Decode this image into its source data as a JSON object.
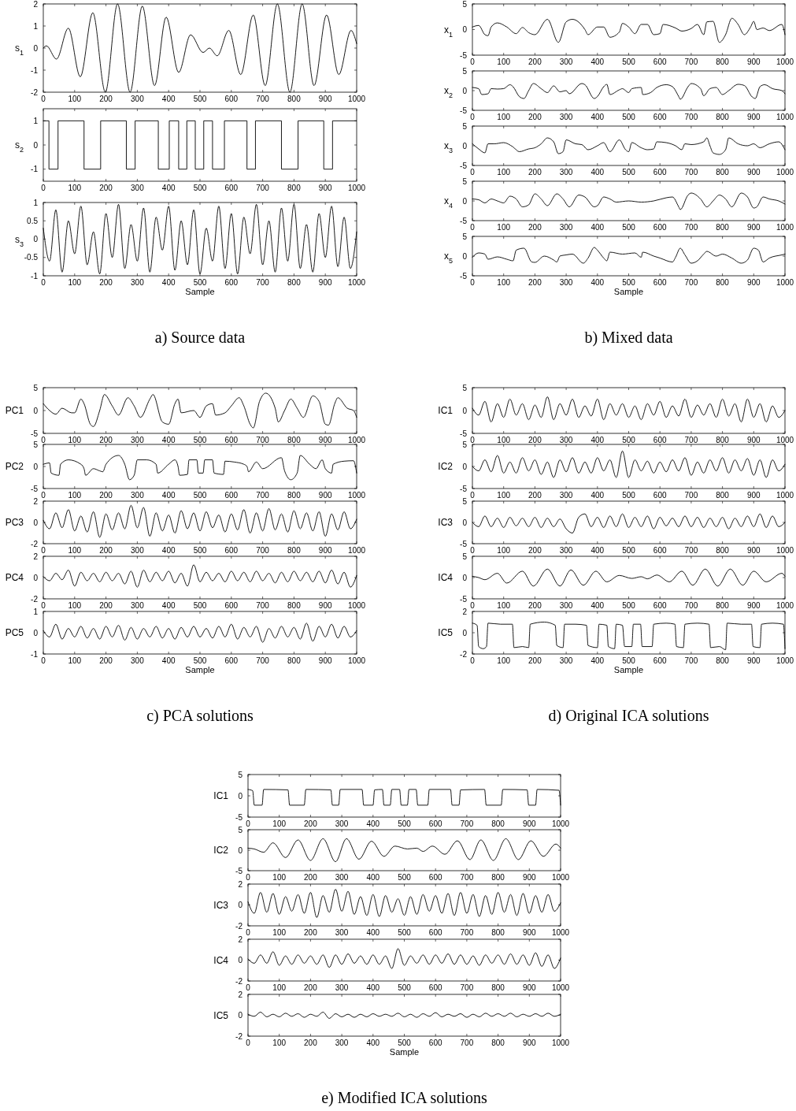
{
  "chart_data": [
    {
      "type": "line",
      "ylabel": "s$_{1}$",
      "color": "#000000",
      "xlim": [
        0,
        1000
      ],
      "xticks": [
        0,
        100,
        200,
        300,
        400,
        500,
        600,
        700,
        800,
        900,
        1000
      ],
      "ylim": [
        -2,
        2
      ],
      "yticks": [
        -2,
        -1,
        0,
        1,
        2
      ],
      "x": [
        0,
        10,
        42,
        80,
        118,
        158,
        198,
        237,
        277,
        316,
        355,
        392,
        432,
        470,
        510,
        530,
        555,
        592,
        630,
        670,
        708,
        747,
        787,
        826,
        864,
        904,
        943,
        982,
        1000
      ],
      "values": [
        0,
        0.1,
        -0.5,
        0.9,
        -1.3,
        1.6,
        -2,
        2,
        -2,
        1.9,
        -1.7,
        1.4,
        -1.1,
        0.6,
        -0.2,
        0,
        -0.35,
        0.8,
        -1.2,
        1.5,
        -1.7,
        2,
        -2,
        2,
        -1.7,
        1.5,
        -1.2,
        0.8,
        0.2
      ]
    },
    {
      "type": "step",
      "ylabel": "s$_{2}$",
      "color": "#000000",
      "xlim": [
        0,
        1000
      ],
      "xticks": [
        0,
        100,
        200,
        300,
        400,
        500,
        600,
        700,
        800,
        900,
        1000
      ],
      "ylim": [
        -1.5,
        1.5
      ],
      "yticks": [
        -1,
        0,
        1
      ],
      "x": [
        0,
        18,
        47,
        130,
        183,
        265,
        293,
        367,
        402,
        432,
        458,
        485,
        512,
        540,
        578,
        650,
        677,
        760,
        813,
        895,
        923,
        1000
      ],
      "values": [
        1,
        -1,
        1,
        -1,
        1,
        -1,
        1,
        -1,
        1,
        -1,
        1,
        -1,
        1,
        -1,
        1,
        -1,
        1,
        -1,
        1,
        -1,
        1,
        1
      ]
    },
    {
      "type": "line",
      "ylabel": "s$_{3}$",
      "xlabel": "Sample",
      "annotations": [
        "a) Source data"
      ],
      "color": "#000000",
      "xlim": [
        0,
        1000
      ],
      "xticks": [
        0,
        100,
        200,
        300,
        400,
        500,
        600,
        700,
        800,
        900,
        1000
      ],
      "ylim": [
        -1,
        1
      ],
      "yticks": [
        -1,
        -0.5,
        0,
        0.5,
        1
      ],
      "x": [
        0,
        20,
        40,
        60,
        80,
        100,
        120,
        140,
        160,
        180,
        200,
        220,
        240,
        260,
        280,
        300,
        320,
        340,
        360,
        380,
        400,
        420,
        440,
        460,
        480,
        500,
        520,
        540,
        560,
        580,
        600,
        620,
        640,
        660,
        680,
        700,
        720,
        740,
        760,
        780,
        800,
        820,
        840,
        860,
        880,
        900,
        920,
        940,
        960,
        980,
        1000
      ],
      "values": [
        0.3,
        -0.6,
        0.8,
        -0.9,
        0.5,
        -0.4,
        0.9,
        -0.7,
        0.2,
        -0.95,
        0.7,
        -0.5,
        0.95,
        -0.8,
        0.4,
        -0.6,
        0.85,
        -0.9,
        0.6,
        -0.3,
        0.9,
        -0.85,
        0.5,
        -0.7,
        0.8,
        -0.95,
        0.3,
        -0.6,
        0.9,
        -0.8,
        0.7,
        -0.95,
        0.6,
        -0.4,
        0.95,
        -0.7,
        0.5,
        -0.9,
        0.85,
        -0.6,
        0.95,
        -0.8,
        0.4,
        -0.9,
        0.7,
        -0.5,
        0.9,
        -0.75,
        0.6,
        -0.8,
        0.2
      ]
    },
    {
      "type": "line",
      "ylabel": "x$_{1}$",
      "color": "#000000",
      "xlim": [
        0,
        1000
      ],
      "xticks": [
        0,
        100,
        200,
        300,
        400,
        500,
        600,
        700,
        800,
        900,
        1000
      ],
      "ylim": [
        -5,
        5
      ],
      "yticks": [
        -5,
        0,
        5
      ],
      "x": [
        0,
        20,
        40,
        50,
        60,
        80,
        110,
        140,
        160,
        180,
        200,
        240,
        275,
        300,
        320,
        360,
        370,
        400,
        420,
        440,
        470,
        480,
        500,
        520,
        540,
        560,
        580,
        600,
        610,
        650,
        670,
        700,
        720,
        740,
        750,
        770,
        790,
        810,
        830,
        850,
        870,
        890,
        900,
        910,
        930,
        950,
        990,
        1000
      ],
      "values": [
        0.5,
        0.8,
        -1,
        -1.2,
        0.5,
        1.3,
        0.5,
        -0.8,
        0.4,
        -0.6,
        -1,
        2,
        -2.5,
        1.5,
        2,
        0,
        -1,
        0.5,
        0.5,
        -1.5,
        -0.5,
        1.2,
        0.5,
        -0.8,
        1,
        1,
        -1,
        -0.8,
        1,
        0.3,
        -0.3,
        0.2,
        1,
        -1,
        1.5,
        1.6,
        -2.5,
        -1,
        2.2,
        1,
        -1,
        0.5,
        1.6,
        0,
        0.3,
        -0.2,
        1,
        -1
      ]
    },
    {
      "type": "line",
      "ylabel": "x$_{2}$",
      "color": "#000000",
      "xlim": [
        0,
        1000
      ],
      "xticks": [
        0,
        100,
        200,
        300,
        400,
        500,
        600,
        700,
        800,
        900,
        1000
      ],
      "ylim": [
        -5,
        5
      ],
      "yticks": [
        -5,
        0,
        5
      ],
      "x": [
        0,
        20,
        30,
        50,
        60,
        80,
        100,
        120,
        130,
        150,
        165,
        180,
        195,
        220,
        240,
        260,
        280,
        300,
        310,
        350,
        360,
        390,
        400,
        420,
        430,
        440,
        470,
        480,
        500,
        510,
        540,
        545,
        570,
        590,
        620,
        640,
        660,
        665,
        690,
        700,
        730,
        740,
        760,
        780,
        800,
        820,
        850,
        870,
        895,
        905,
        920,
        935,
        960,
        990,
        1000
      ],
      "values": [
        0.8,
        0.5,
        -1,
        -0.8,
        0.5,
        0.4,
        0.5,
        1.5,
        1,
        -1.5,
        -2,
        0,
        1.8,
        0.5,
        -0.5,
        1.2,
        -0.3,
        0,
        -0.8,
        1.8,
        1.5,
        -2,
        -1.5,
        1,
        1.6,
        -1,
        0.2,
        0.5,
        -0.5,
        0.5,
        0.8,
        -1,
        -0.5,
        0.8,
        1.5,
        1,
        -1.5,
        -2.2,
        1,
        1.8,
        0.5,
        -1.3,
        0.5,
        0.8,
        -1,
        0,
        1.6,
        1.3,
        -1.6,
        -2,
        1,
        1.5,
        0.5,
        0,
        -0.8
      ]
    },
    {
      "type": "line",
      "ylabel": "x$_{3}$",
      "color": "#000000",
      "xlim": [
        0,
        1000
      ],
      "xticks": [
        0,
        100,
        200,
        300,
        400,
        500,
        600,
        700,
        800,
        900,
        1000
      ],
      "ylim": [
        -5,
        5
      ],
      "yticks": [
        -5,
        0,
        5
      ],
      "x": [
        0,
        20,
        40,
        50,
        70,
        100,
        130,
        150,
        180,
        200,
        220,
        240,
        260,
        275,
        290,
        300,
        330,
        350,
        370,
        400,
        420,
        440,
        470,
        490,
        500,
        510,
        540,
        560,
        580,
        590,
        620,
        650,
        670,
        680,
        700,
        740,
        750,
        760,
        770,
        790,
        810,
        820,
        850,
        880,
        900,
        920,
        950,
        980,
        1000
      ],
      "values": [
        0.5,
        -0.8,
        -1.8,
        0.5,
        0.5,
        0.8,
        -0.3,
        -1.5,
        -0.8,
        -0.5,
        0.5,
        2,
        1,
        -2,
        -1.5,
        1.5,
        0.5,
        0.3,
        -1,
        0,
        0.8,
        -1.5,
        1.5,
        -1,
        -1.5,
        0.8,
        -0.5,
        -1,
        -0.8,
        1,
        0.8,
        0,
        -1,
        0.5,
        0.3,
        1,
        2,
        0,
        -1.8,
        -2.2,
        -1,
        2,
        0.5,
        0,
        0.5,
        -0.5,
        0.5,
        1,
        -1
      ]
    },
    {
      "type": "line",
      "ylabel": "x$_{4}$",
      "color": "#000000",
      "xlim": [
        0,
        1000
      ],
      "xticks": [
        0,
        100,
        200,
        300,
        400,
        500,
        600,
        700,
        800,
        900,
        1000
      ],
      "ylim": [
        -5,
        5
      ],
      "yticks": [
        -5,
        0,
        5
      ],
      "x": [
        0,
        20,
        40,
        60,
        80,
        100,
        120,
        140,
        160,
        180,
        200,
        220,
        240,
        270,
        290,
        310,
        340,
        360,
        390,
        400,
        420,
        440,
        460,
        500,
        540,
        580,
        620,
        640,
        660,
        665,
        690,
        700,
        730,
        750,
        770,
        790,
        810,
        830,
        860,
        880,
        900,
        910,
        930,
        950,
        980,
        1000
      ],
      "values": [
        0.5,
        0.3,
        -0.5,
        0.5,
        0,
        -0.5,
        1.2,
        0.5,
        -1.5,
        -1,
        1.8,
        0.5,
        -1.2,
        1.8,
        0.5,
        -1.5,
        1.5,
        1,
        -1.5,
        -1.2,
        1,
        0.5,
        -0.3,
        0,
        -0.3,
        0,
        0.8,
        1,
        -1.5,
        -2.2,
        1.5,
        2,
        0.5,
        -1.5,
        0,
        1.5,
        0.5,
        -1.5,
        2,
        1,
        -1.8,
        -1.5,
        1,
        0.5,
        0,
        -0.8
      ]
    },
    {
      "type": "line",
      "ylabel": "x$_{5}$",
      "xlabel": "Sample",
      "annotations": [
        "b) Mixed data"
      ],
      "color": "#000000",
      "xlim": [
        0,
        1000
      ],
      "xticks": [
        0,
        100,
        200,
        300,
        400,
        500,
        600,
        700,
        800,
        900,
        1000
      ],
      "ylim": [
        -5,
        5
      ],
      "yticks": [
        -5,
        0,
        5
      ],
      "x": [
        0,
        20,
        40,
        50,
        80,
        110,
        130,
        140,
        165,
        190,
        200,
        230,
        260,
        270,
        280,
        300,
        320,
        355,
        370,
        390,
        400,
        420,
        430,
        440,
        480,
        520,
        540,
        545,
        580,
        600,
        640,
        650,
        665,
        680,
        700,
        720,
        740,
        750,
        780,
        800,
        830,
        860,
        880,
        900,
        915,
        930,
        950,
        990,
        1000
      ],
      "values": [
        -0.3,
        0.8,
        0.5,
        -0.8,
        -0.2,
        -0.8,
        -1.2,
        1.5,
        2,
        -1.5,
        -1.6,
        0,
        -1,
        -1.5,
        0,
        0.3,
        0.5,
        -1.8,
        -0.5,
        2.2,
        1.5,
        -0.5,
        -1.2,
        1,
        0.5,
        0.8,
        -0.3,
        1,
        0,
        -0.5,
        -1.5,
        -0.3,
        2,
        0.3,
        -1.8,
        -1.2,
        0.5,
        1.2,
        0,
        0.5,
        -0.5,
        -1.8,
        -1,
        2,
        1.5,
        -1.5,
        -0.5,
        0.3,
        0.5
      ]
    },
    {
      "type": "line",
      "ylabel": "PC1",
      "color": "#000000",
      "xlim": [
        0,
        1000
      ],
      "xticks": [
        0,
        100,
        200,
        300,
        400,
        500,
        600,
        700,
        800,
        900,
        1000
      ],
      "ylim": [
        -5,
        5
      ],
      "yticks": [
        -5,
        0,
        5
      ],
      "x": [
        0,
        20,
        40,
        60,
        90,
        100,
        120,
        130,
        150,
        160,
        180,
        195,
        220,
        240,
        270,
        290,
        310,
        340,
        350,
        380,
        400,
        420,
        430,
        440,
        480,
        500,
        520,
        540,
        550,
        580,
        600,
        625,
        640,
        660,
        670,
        690,
        710,
        740,
        750,
        770,
        790,
        810,
        830,
        860,
        880,
        900,
        910,
        930,
        940,
        970,
        990,
        1000
      ],
      "values": [
        1.5,
        0,
        -0.8,
        0.5,
        -0.5,
        -0.5,
        2.5,
        1.5,
        -3,
        -3.5,
        0,
        3.5,
        1,
        -1,
        2.8,
        1,
        -1.5,
        2.5,
        3.5,
        -2.5,
        -3,
        1.5,
        2.5,
        -0.5,
        0,
        -1.5,
        1,
        1.5,
        -1,
        -0.5,
        1,
        2.8,
        1,
        -3,
        -3.8,
        2,
        3.8,
        0.5,
        -2.5,
        0,
        2.5,
        0.5,
        -1.5,
        3.2,
        2,
        -3,
        -3.2,
        1.5,
        2.8,
        0.5,
        0,
        -1.5
      ]
    },
    {
      "type": "line",
      "ylabel": "PC2",
      "color": "#000000",
      "xlim": [
        0,
        1000
      ],
      "xticks": [
        0,
        100,
        200,
        300,
        400,
        500,
        600,
        700,
        800,
        900,
        1000
      ],
      "ylim": [
        -5,
        5
      ],
      "yticks": [
        -5,
        0,
        5
      ],
      "x": [
        0,
        20,
        25,
        50,
        55,
        80,
        120,
        130,
        135,
        160,
        180,
        190,
        200,
        240,
        260,
        275,
        290,
        300,
        330,
        360,
        365,
        400,
        420,
        430,
        435,
        460,
        465,
        490,
        495,
        510,
        515,
        540,
        545,
        575,
        580,
        610,
        640,
        650,
        655,
        680,
        700,
        760,
        770,
        790,
        810,
        820,
        850,
        870,
        890,
        900,
        920,
        925,
        960,
        990,
        1000
      ],
      "values": [
        0.5,
        0.8,
        -1.5,
        -2,
        0.5,
        1.5,
        0.5,
        -0.5,
        -2,
        -0.5,
        -1,
        -1.2,
        0.5,
        2.5,
        0.5,
        -3,
        -2,
        1.5,
        1.5,
        0.5,
        -1.5,
        0.5,
        1.5,
        0,
        -2,
        -1.8,
        1.5,
        1.5,
        -1.5,
        -1.5,
        1.5,
        1.5,
        -1.5,
        -1.8,
        1.2,
        1,
        0.5,
        0,
        -1.2,
        1,
        -0.5,
        2,
        -1,
        -3,
        -1.5,
        2.5,
        0.5,
        -0.5,
        1.5,
        -0.5,
        -1.5,
        0.5,
        1.2,
        1.3,
        -1.5
      ]
    },
    {
      "type": "line",
      "ylabel": "PC3",
      "color": "#000000",
      "xlim": [
        0,
        1000
      ],
      "xticks": [
        0,
        100,
        200,
        300,
        400,
        500,
        600,
        700,
        800,
        900,
        1000
      ],
      "ylim": [
        -2,
        2
      ],
      "yticks": [
        -2,
        0,
        2
      ],
      "x": [
        0,
        20,
        40,
        60,
        80,
        100,
        120,
        140,
        160,
        180,
        200,
        220,
        240,
        260,
        280,
        300,
        320,
        340,
        360,
        380,
        400,
        420,
        440,
        460,
        480,
        500,
        520,
        540,
        560,
        580,
        600,
        620,
        640,
        660,
        680,
        700,
        720,
        740,
        760,
        780,
        800,
        820,
        840,
        860,
        880,
        900,
        920,
        940,
        960,
        980,
        1000
      ],
      "values": [
        0.2,
        -0.6,
        0.9,
        -0.5,
        1.2,
        -0.8,
        0.6,
        -0.9,
        1.0,
        -1.4,
        0.8,
        -0.7,
        0.9,
        -0.6,
        1.6,
        -0.5,
        1.4,
        -1.3,
        0.9,
        -0.8,
        0.7,
        -1.0,
        1.1,
        -0.6,
        0.9,
        -0.8,
        1.0,
        -0.5,
        0.7,
        -0.9,
        0.8,
        -0.7,
        1.2,
        -1.0,
        0.9,
        -0.8,
        1.3,
        -0.7,
        0.8,
        -0.9,
        1.1,
        -0.6,
        0.9,
        -0.8,
        1.0,
        -1.3,
        0.8,
        -0.7,
        1.0,
        -0.6,
        0.3
      ]
    },
    {
      "type": "line",
      "ylabel": "PC4",
      "color": "#000000",
      "xlim": [
        0,
        1000
      ],
      "xticks": [
        0,
        100,
        200,
        300,
        400,
        500,
        600,
        700,
        800,
        900,
        1000
      ],
      "ylim": [
        -2,
        2
      ],
      "yticks": [
        -2,
        0,
        2
      ],
      "x": [
        0,
        20,
        40,
        60,
        80,
        100,
        120,
        140,
        160,
        180,
        200,
        220,
        240,
        260,
        280,
        300,
        320,
        340,
        360,
        380,
        400,
        420,
        440,
        460,
        480,
        500,
        520,
        540,
        560,
        580,
        600,
        620,
        640,
        660,
        680,
        700,
        720,
        740,
        760,
        780,
        800,
        820,
        840,
        860,
        880,
        900,
        920,
        940,
        960,
        980,
        1000
      ],
      "values": [
        0.1,
        -0.3,
        0.4,
        -0.2,
        0.7,
        -0.8,
        0.5,
        -0.3,
        0.4,
        -0.4,
        0.5,
        -0.3,
        0.4,
        -0.6,
        0.6,
        -0.9,
        0.7,
        -0.4,
        0.5,
        -0.3,
        0.6,
        -0.5,
        0.4,
        -0.8,
        1.2,
        -0.4,
        0.5,
        -0.3,
        0.4,
        -0.4,
        0.6,
        -0.3,
        0.5,
        -0.4,
        0.6,
        -0.3,
        0.4,
        -0.5,
        0.5,
        -0.4,
        0.6,
        -0.3,
        0.5,
        -0.4,
        0.6,
        -0.5,
        0.7,
        -0.6,
        0.5,
        -0.9,
        0.2
      ]
    },
    {
      "type": "line",
      "ylabel": "PC5",
      "xlabel": "Sample",
      "annotations": [
        "c) PCA solutions"
      ],
      "color": "#000000",
      "xlim": [
        0,
        1000
      ],
      "xticks": [
        0,
        100,
        200,
        300,
        400,
        500,
        600,
        700,
        800,
        900,
        1000
      ],
      "ylim": [
        -1,
        1
      ],
      "yticks": [
        -1,
        0,
        1
      ],
      "x": [
        0,
        20,
        40,
        60,
        80,
        100,
        120,
        140,
        160,
        180,
        200,
        220,
        240,
        260,
        280,
        300,
        320,
        340,
        360,
        380,
        400,
        420,
        440,
        460,
        480,
        500,
        520,
        540,
        560,
        580,
        600,
        620,
        640,
        660,
        680,
        700,
        720,
        740,
        760,
        780,
        800,
        820,
        840,
        860,
        880,
        900,
        920,
        940,
        960,
        980,
        1000
      ],
      "values": [
        0.1,
        -0.2,
        0.4,
        -0.3,
        0.2,
        -0.2,
        0.3,
        -0.25,
        0.2,
        -0.3,
        0.3,
        -0.2,
        0.35,
        -0.35,
        0.25,
        -0.3,
        0.2,
        -0.2,
        0.3,
        -0.25,
        0.2,
        -0.3,
        0.25,
        -0.2,
        0.3,
        -0.2,
        0.2,
        -0.25,
        0.3,
        -0.2,
        0.4,
        -0.3,
        0.25,
        -0.2,
        0.3,
        -0.45,
        0.2,
        -0.25,
        0.3,
        -0.2,
        0.25,
        -0.3,
        0.45,
        -0.4,
        0.3,
        -0.2,
        0.4,
        -0.25,
        0.3,
        -0.2,
        0.1
      ]
    },
    {
      "type": "line",
      "ylabel": "IC1",
      "color": "#000000",
      "xlim": [
        0,
        1000
      ],
      "xticks": [
        0,
        100,
        200,
        300,
        400,
        500,
        600,
        700,
        800,
        900,
        1000
      ],
      "ylim": [
        -5,
        5
      ],
      "yticks": [
        -5,
        0,
        5
      ],
      "x": [
        0,
        20,
        40,
        60,
        80,
        100,
        120,
        140,
        160,
        180,
        200,
        220,
        240,
        260,
        280,
        300,
        320,
        340,
        360,
        380,
        400,
        420,
        440,
        460,
        480,
        500,
        520,
        540,
        560,
        580,
        600,
        620,
        640,
        660,
        680,
        700,
        720,
        740,
        760,
        780,
        800,
        820,
        840,
        860,
        880,
        900,
        920,
        940,
        960,
        980,
        1000
      ],
      "values": [
        0.5,
        -1,
        2,
        -2.5,
        1.5,
        -1.5,
        2.5,
        -1,
        1.5,
        -2,
        1.2,
        -1.5,
        3,
        -2,
        1.5,
        -1,
        2.5,
        -1.5,
        1,
        -1.2,
        2.5,
        -2,
        1.5,
        -1,
        1.5,
        -1.5,
        1,
        -2,
        1.5,
        -1,
        2,
        -1.5,
        1,
        -1.2,
        2.5,
        -1.5,
        1.2,
        -1,
        1.5,
        -1.5,
        2.5,
        -1.2,
        1.5,
        -2.5,
        2.5,
        -1.5,
        1.5,
        -2.5,
        1,
        -1.5,
        0
      ]
    },
    {
      "type": "line",
      "ylabel": "IC2",
      "color": "#000000",
      "xlim": [
        0,
        1000
      ],
      "xticks": [
        0,
        100,
        200,
        300,
        400,
        500,
        600,
        700,
        800,
        900,
        1000
      ],
      "ylim": [
        -5,
        5
      ],
      "yticks": [
        -5,
        0,
        5
      ],
      "x": [
        0,
        20,
        40,
        60,
        80,
        100,
        120,
        140,
        160,
        180,
        200,
        220,
        240,
        260,
        280,
        300,
        320,
        340,
        360,
        380,
        400,
        420,
        440,
        460,
        480,
        500,
        520,
        540,
        560,
        580,
        600,
        620,
        640,
        660,
        680,
        700,
        720,
        740,
        760,
        780,
        800,
        820,
        840,
        860,
        880,
        900,
        920,
        940,
        960,
        980,
        1000
      ],
      "values": [
        0,
        -1,
        1.5,
        -1.2,
        2.5,
        -1.5,
        1,
        -1.5,
        2,
        -1,
        1.5,
        -1.8,
        1,
        -2.5,
        1.5,
        -1.2,
        2,
        -1.5,
        1,
        -1.5,
        2,
        -1,
        1.5,
        -2.5,
        3.5,
        -2.5,
        1.5,
        -1,
        1.2,
        -1.5,
        1,
        -1.2,
        1.5,
        -1,
        2,
        -2,
        1,
        -1.5,
        1.5,
        -1,
        2,
        -1.5,
        1.5,
        -1,
        1.8,
        -2,
        1.5,
        -2.5,
        1.5,
        -1,
        0.5
      ]
    },
    {
      "type": "line",
      "ylabel": "IC3",
      "color": "#000000",
      "xlim": [
        0,
        1000
      ],
      "xticks": [
        0,
        100,
        200,
        300,
        400,
        500,
        600,
        700,
        800,
        900,
        1000
      ],
      "ylim": [
        -5,
        5
      ],
      "yticks": [
        -5,
        0,
        5
      ],
      "x": [
        0,
        20,
        40,
        60,
        80,
        100,
        120,
        140,
        160,
        180,
        200,
        220,
        240,
        260,
        280,
        300,
        320,
        340,
        360,
        380,
        400,
        420,
        440,
        460,
        480,
        500,
        520,
        540,
        560,
        580,
        600,
        620,
        640,
        660,
        680,
        700,
        720,
        740,
        760,
        780,
        800,
        820,
        840,
        860,
        880,
        900,
        920,
        940,
        960,
        980,
        1000
      ],
      "values": [
        0,
        -1,
        1.5,
        -1,
        1,
        -1.2,
        1.2,
        -0.8,
        1,
        -1,
        1.2,
        -1.2,
        1,
        -1,
        0.8,
        -1.5,
        -2.5,
        1.2,
        2,
        -1,
        1.2,
        -1.2,
        1.5,
        -1,
        2,
        -1.2,
        1.2,
        -1,
        1.5,
        -1.5,
        1.2,
        -0.8,
        1,
        -1,
        1.5,
        -1,
        1.2,
        -1.2,
        1,
        -1,
        1.2,
        -1.5,
        1,
        -1,
        1.5,
        -1,
        2,
        -1.2,
        1.5,
        -1,
        0
      ]
    },
    {
      "type": "line",
      "ylabel": "IC4",
      "color": "#000000",
      "xlim": [
        0,
        1000
      ],
      "xticks": [
        0,
        100,
        200,
        300,
        400,
        500,
        600,
        700,
        800,
        900,
        1000
      ],
      "ylim": [
        -5,
        5
      ],
      "yticks": [
        -5,
        0,
        5
      ],
      "x": [
        0,
        20,
        40,
        80,
        110,
        160,
        195,
        240,
        280,
        315,
        355,
        395,
        430,
        470,
        510,
        540,
        560,
        590,
        630,
        670,
        705,
        745,
        785,
        825,
        865,
        900,
        940,
        990,
        1000
      ],
      "values": [
        0.3,
        0,
        -0.5,
        1,
        -1.3,
        1.5,
        -2,
        2,
        -2,
        1.8,
        -1.8,
        1.5,
        -1,
        0.5,
        -0.2,
        0.2,
        -0.3,
        0.6,
        -1,
        1.5,
        -1.8,
        2,
        -2,
        2,
        -1.8,
        1.5,
        -1,
        1,
        0.3
      ]
    },
    {
      "type": "line",
      "ylabel": "IC5",
      "xlabel": "Sample",
      "annotations": [
        "d) Original ICA solutions"
      ],
      "color": "#000000",
      "xlim": [
        0,
        1000
      ],
      "xticks": [
        0,
        100,
        200,
        300,
        400,
        500,
        600,
        700,
        800,
        900,
        1000
      ],
      "ylim": [
        -2,
        2
      ],
      "yticks": [
        -2,
        0,
        2
      ],
      "x": [
        0,
        15,
        20,
        35,
        45,
        50,
        90,
        128,
        133,
        160,
        180,
        185,
        230,
        265,
        270,
        290,
        295,
        330,
        365,
        370,
        400,
        405,
        430,
        435,
        455,
        460,
        480,
        487,
        510,
        515,
        538,
        543,
        575,
        580,
        620,
        648,
        653,
        675,
        680,
        720,
        757,
        762,
        790,
        810,
        815,
        860,
        893,
        898,
        920,
        925,
        960,
        995,
        1000
      ],
      "values": [
        0.9,
        0.7,
        -1.3,
        -1.5,
        -1.3,
        0.9,
        0.8,
        0.8,
        -1.4,
        -1.3,
        -1.4,
        0.8,
        1,
        0.7,
        -1.2,
        -1.4,
        0.8,
        0.8,
        0.7,
        -1.2,
        -1.4,
        0.8,
        0.7,
        -1.3,
        -1.5,
        0.8,
        0.7,
        -1.3,
        -1.3,
        0.8,
        0.8,
        -1.3,
        -1.3,
        0.8,
        0.9,
        0.8,
        -1.3,
        -1.4,
        0.8,
        0.9,
        0.8,
        -1.4,
        -1.3,
        -1.6,
        0.9,
        0.8,
        0.8,
        -1.3,
        -1.4,
        0.8,
        0.9,
        0.8,
        -1.5
      ]
    },
    {
      "type": "line",
      "ylabel": "IC1",
      "color": "#000000",
      "xlim": [
        0,
        1000
      ],
      "xticks": [
        0,
        100,
        200,
        300,
        400,
        500,
        600,
        700,
        800,
        900,
        1000
      ],
      "ylim": [
        -5,
        5
      ],
      "yticks": [
        -5,
        0,
        5
      ],
      "x": [
        0,
        15,
        20,
        45,
        50,
        128,
        133,
        180,
        185,
        265,
        270,
        290,
        295,
        365,
        370,
        400,
        405,
        430,
        435,
        455,
        460,
        485,
        490,
        510,
        515,
        538,
        543,
        575,
        580,
        648,
        653,
        675,
        680,
        757,
        762,
        810,
        815,
        893,
        898,
        920,
        925,
        995,
        1000
      ],
      "values": [
        1.5,
        1.2,
        -2.2,
        -2.2,
        1.5,
        1.4,
        -2.2,
        -2.2,
        1.5,
        1.4,
        -2.2,
        -2.2,
        1.5,
        1.5,
        -2.2,
        -2.2,
        1.4,
        1.5,
        -2.2,
        -2.2,
        1.5,
        1.5,
        -2.2,
        -2.2,
        1.5,
        1.5,
        -2.2,
        -2.2,
        1.5,
        1.5,
        -2.2,
        -2.2,
        1.4,
        1.5,
        -2.2,
        -2.2,
        1.5,
        1.4,
        -2.2,
        -2.2,
        1.5,
        1.3,
        -2.2
      ]
    },
    {
      "type": "line",
      "ylabel": "IC2",
      "color": "#000000",
      "xlim": [
        0,
        1000
      ],
      "xticks": [
        0,
        100,
        200,
        300,
        400,
        500,
        600,
        700,
        800,
        900,
        1000
      ],
      "ylim": [
        -5,
        5
      ],
      "yticks": [
        -5,
        0,
        5
      ],
      "x": [
        0,
        20,
        50,
        80,
        120,
        160,
        200,
        240,
        280,
        315,
        355,
        395,
        435,
        470,
        510,
        540,
        560,
        590,
        630,
        670,
        710,
        745,
        785,
        825,
        865,
        905,
        945,
        985,
        1000
      ],
      "values": [
        0.5,
        0.3,
        -0.5,
        1.8,
        -1.8,
        2.5,
        -2.5,
        2.8,
        -2.8,
        2.8,
        -2.2,
        2.2,
        -1.5,
        1,
        0.3,
        0.5,
        -0.3,
        1,
        -1,
        2.3,
        -2.3,
        2.5,
        -2.5,
        2.8,
        -2.3,
        2.3,
        -1.5,
        1.5,
        0.5
      ]
    },
    {
      "type": "line",
      "ylabel": "IC3",
      "color": "#000000",
      "xlim": [
        0,
        1000
      ],
      "xticks": [
        0,
        100,
        200,
        300,
        400,
        500,
        600,
        700,
        800,
        900,
        1000
      ],
      "ylim": [
        -2,
        2
      ],
      "yticks": [
        -2,
        0,
        2
      ],
      "x": [
        0,
        20,
        40,
        60,
        80,
        100,
        120,
        140,
        160,
        180,
        200,
        220,
        240,
        260,
        280,
        300,
        320,
        340,
        360,
        380,
        400,
        420,
        440,
        460,
        480,
        500,
        520,
        540,
        560,
        580,
        600,
        620,
        640,
        660,
        680,
        700,
        720,
        740,
        760,
        780,
        800,
        820,
        840,
        860,
        880,
        900,
        920,
        940,
        960,
        980,
        1000
      ],
      "values": [
        0.3,
        -0.8,
        1.2,
        -0.7,
        1.1,
        -0.9,
        0.8,
        -0.6,
        1.0,
        -0.8,
        1.2,
        -1.2,
        0.9,
        -0.7,
        1.5,
        -0.6,
        1.3,
        -0.9,
        0.8,
        -1.0,
        1.0,
        -1.1,
        0.9,
        -0.7,
        0.6,
        -1.0,
        0.8,
        -0.9,
        1.0,
        -0.6,
        0.9,
        -0.8,
        1.1,
        -1.0,
        1.2,
        -0.8,
        1.0,
        -1.1,
        0.9,
        -0.9,
        1.2,
        -0.7,
        1.0,
        -1.0,
        1.1,
        -0.8,
        0.9,
        -0.7,
        1.0,
        -0.6,
        0.2
      ]
    },
    {
      "type": "line",
      "ylabel": "IC4",
      "color": "#000000",
      "xlim": [
        0,
        1000
      ],
      "xticks": [
        0,
        100,
        200,
        300,
        400,
        500,
        600,
        700,
        800,
        900,
        1000
      ],
      "ylim": [
        -2,
        2
      ],
      "yticks": [
        -2,
        0,
        2
      ],
      "x": [
        0,
        20,
        40,
        60,
        80,
        100,
        120,
        140,
        160,
        180,
        200,
        220,
        240,
        260,
        280,
        300,
        320,
        340,
        360,
        380,
        400,
        420,
        440,
        460,
        480,
        500,
        520,
        540,
        560,
        580,
        600,
        620,
        640,
        660,
        680,
        700,
        720,
        740,
        760,
        780,
        800,
        820,
        840,
        860,
        880,
        900,
        920,
        940,
        960,
        980,
        1000
      ],
      "values": [
        0.1,
        -0.3,
        0.5,
        -0.3,
        0.8,
        -0.5,
        0.4,
        -0.4,
        0.5,
        -0.3,
        0.4,
        -0.4,
        0.5,
        -0.7,
        0.5,
        -0.4,
        0.6,
        -0.3,
        0.4,
        -0.4,
        0.5,
        -0.4,
        0.4,
        -0.8,
        1.1,
        -0.5,
        0.4,
        -0.3,
        0.5,
        -0.4,
        0.5,
        -0.3,
        0.6,
        -0.4,
        0.5,
        -0.4,
        0.4,
        -0.5,
        0.5,
        -0.3,
        0.5,
        -0.4,
        0.6,
        -0.4,
        0.5,
        -0.5,
        0.7,
        -0.6,
        0.5,
        -0.8,
        0.2
      ]
    },
    {
      "type": "line",
      "ylabel": "IC5",
      "xlabel": "Sample",
      "annotations": [
        "e) Modified ICA solutions"
      ],
      "color": "#000000",
      "xlim": [
        0,
        1000
      ],
      "xticks": [
        0,
        100,
        200,
        300,
        400,
        500,
        600,
        700,
        800,
        900,
        1000
      ],
      "ylim": [
        -2,
        2
      ],
      "yticks": [
        -2,
        0,
        2
      ],
      "x": [
        0,
        20,
        40,
        60,
        80,
        100,
        120,
        140,
        160,
        180,
        200,
        220,
        240,
        260,
        280,
        300,
        320,
        340,
        360,
        380,
        400,
        420,
        440,
        460,
        480,
        500,
        520,
        540,
        560,
        580,
        600,
        620,
        640,
        660,
        680,
        700,
        720,
        740,
        760,
        780,
        800,
        820,
        840,
        860,
        880,
        900,
        920,
        940,
        960,
        980,
        1000
      ],
      "values": [
        0.1,
        -0.1,
        0.3,
        -0.15,
        0.1,
        -0.15,
        0.2,
        -0.1,
        0.15,
        -0.2,
        0.1,
        -0.1,
        0.3,
        -0.3,
        0.15,
        -0.15,
        0.1,
        -0.2,
        0.1,
        -0.15,
        0.15,
        -0.1,
        0.1,
        -0.1,
        0.2,
        -0.15,
        0.1,
        -0.2,
        0.15,
        -0.1,
        0.25,
        -0.15,
        0.1,
        -0.1,
        0.15,
        -0.2,
        0.1,
        -0.15,
        0.2,
        -0.1,
        0.15,
        -0.1,
        0.2,
        -0.15,
        0.1,
        -0.1,
        0.15,
        -0.1,
        0.2,
        -0.1,
        0.1
      ]
    }
  ]
}
